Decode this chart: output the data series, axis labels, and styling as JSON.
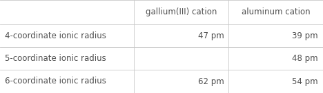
{
  "col_headers": [
    "gallium(III) cation",
    "aluminum cation"
  ],
  "row_headers": [
    "4-coordinate ionic radius",
    "5-coordinate ionic radius",
    "6-coordinate ionic radius"
  ],
  "cells": [
    [
      "47 pm",
      "39 pm"
    ],
    [
      "",
      "48 pm"
    ],
    [
      "62 pm",
      "54 pm"
    ]
  ],
  "background_color": "#ffffff",
  "text_color": "#505050",
  "line_color": "#c8c8c8",
  "font_size": 8.5,
  "col_splits": [
    0.0,
    0.415,
    0.708,
    1.0
  ],
  "row_splits": [
    1.0,
    0.74,
    0.495,
    0.25,
    0.0
  ]
}
